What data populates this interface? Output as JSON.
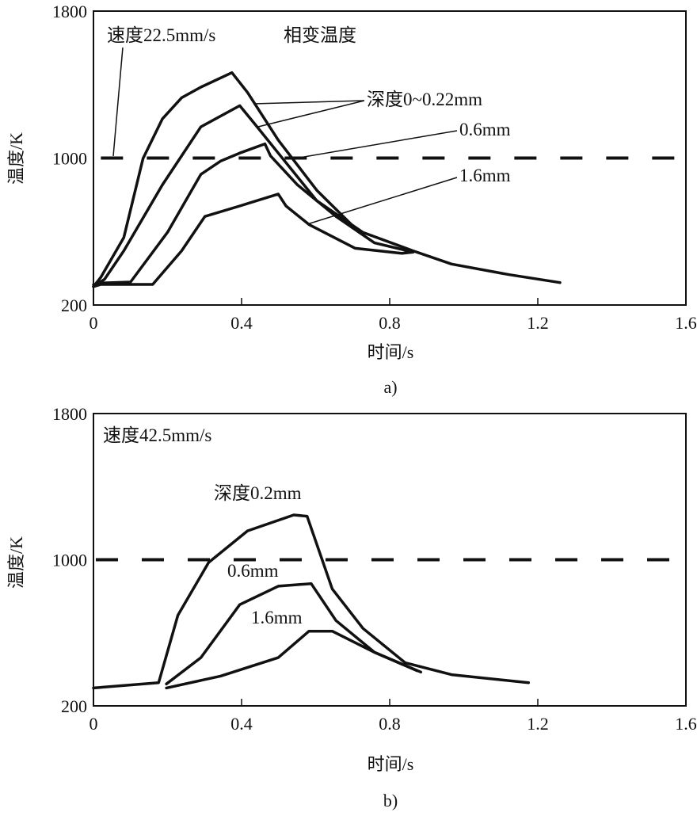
{
  "chart_data": [
    {
      "type": "line",
      "caption": "a)",
      "annotation": "速度22.5mm/s",
      "threshold_label": "相变温度",
      "threshold": 1000,
      "xlabel": "时间/s",
      "ylabel": "温度/K",
      "xlim": [
        0,
        1.6
      ],
      "ylim": [
        200,
        1800
      ],
      "xticks": [
        "0",
        "0.4",
        "0.8",
        "1.2",
        "1.6"
      ],
      "yticks": [
        "200",
        "1000",
        "1800"
      ],
      "series_labels": [
        "深度0~0.22mm",
        "0.6mm",
        "1.6mm"
      ],
      "series": [
        {
          "name": "深度0mm",
          "x": [
            0.0,
            0.02,
            0.082,
            0.134,
            0.186,
            0.238,
            0.29,
            0.374,
            0.416,
            0.499,
            0.603,
            0.718
          ],
          "y": [
            300,
            351,
            567,
            998,
            1213,
            1328,
            1386,
            1465,
            1357,
            1098,
            825,
            595
          ]
        },
        {
          "name": "深度0.22mm",
          "x": [
            0.0,
            0.03,
            0.082,
            0.186,
            0.29,
            0.395,
            0.436,
            0.499,
            0.603,
            0.728,
            0.863,
            0.967,
            1.123,
            1.26
          ],
          "y": [
            300,
            340,
            495,
            854,
            1170,
            1285,
            1185,
            1027,
            768,
            595,
            495,
            423,
            365,
            322
          ]
        },
        {
          "name": "0.6mm",
          "x": [
            0.0,
            0.02,
            0.1,
            0.2,
            0.29,
            0.343,
            0.395,
            0.463,
            0.478,
            0.551,
            0.655,
            0.759,
            0.863
          ],
          "y": [
            310,
            320,
            325,
            596,
            911,
            983,
            1027,
            1077,
            1012,
            854,
            682,
            538,
            488
          ]
        },
        {
          "name": "1.6mm",
          "x": [
            0.0,
            0.02,
            0.16,
            0.238,
            0.301,
            0.395,
            0.499,
            0.52,
            0.582,
            0.707,
            0.832,
            0.863
          ],
          "y": [
            300,
            312,
            312,
            495,
            682,
            739,
            804,
            739,
            638,
            509,
            481,
            488
          ]
        }
      ]
    },
    {
      "type": "line",
      "caption": "b)",
      "annotation": "速度42.5mm/s",
      "threshold": 1000,
      "xlabel": "时间/s",
      "ylabel": "温度/K",
      "xlim": [
        0,
        1.6
      ],
      "ylim": [
        200,
        1800
      ],
      "xticks": [
        "0",
        "0.4",
        "0.8",
        "1.2",
        "1.6"
      ],
      "yticks": [
        "200",
        "1000",
        "1800"
      ],
      "series_labels": [
        "深度0.2mm",
        "0.6mm",
        "1.6mm"
      ],
      "series": [
        {
          "name": "深度0.2mm",
          "x": [
            0.0,
            0.176,
            0.228,
            0.311,
            0.416,
            0.541,
            0.577,
            0.645,
            0.728,
            0.842,
            0.967,
            1.175
          ],
          "y": [
            298,
            327,
            696,
            985,
            1158,
            1245,
            1238,
            840,
            624,
            436,
            371,
            327
          ]
        },
        {
          "name": "0.6mm",
          "x": [
            0.197,
            0.29,
            0.395,
            0.499,
            0.588,
            0.655,
            0.759,
            0.884
          ],
          "y": [
            320,
            464,
            754,
            855,
            869,
            667,
            493,
            385
          ]
        },
        {
          "name": "1.6mm",
          "x": [
            0.197,
            0.343,
            0.499,
            0.582,
            0.645,
            0.759,
            0.874
          ],
          "y": [
            298,
            363,
            464,
            609,
            609,
            493,
            392
          ]
        }
      ]
    }
  ]
}
